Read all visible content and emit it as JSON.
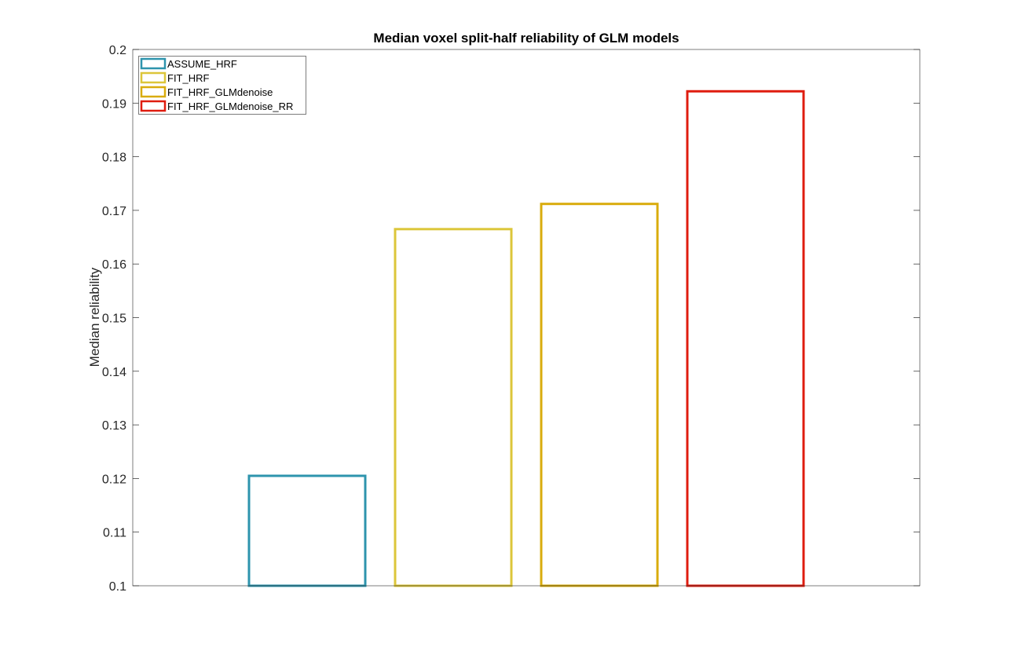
{
  "chart_data": {
    "type": "bar",
    "title": "Median voxel split-half reliability of GLM models",
    "xlabel": "",
    "ylabel": "Median reliability",
    "categories": [
      "ASSUME_HRF",
      "FIT_HRF",
      "FIT_HRF_GLMdenoise",
      "FIT_HRF_GLMdenoise_RR"
    ],
    "values": [
      0.1205,
      0.1665,
      0.1712,
      0.1922
    ],
    "series": [
      {
        "name": "ASSUME_HRF",
        "value": 0.1205,
        "color": "#2e94ad"
      },
      {
        "name": "FIT_HRF",
        "value": 0.1665,
        "color": "#dcc63a"
      },
      {
        "name": "FIT_HRF_GLMdenoise",
        "value": 0.1712,
        "color": "#d9ac0d"
      },
      {
        "name": "FIT_HRF_GLMdenoise_RR",
        "value": 0.1922,
        "color": "#df1c0f"
      }
    ],
    "ylim": [
      0.1,
      0.2
    ],
    "yticks": [
      0.1,
      0.11,
      0.12,
      0.13,
      0.14,
      0.15,
      0.16,
      0.17,
      0.18,
      0.19,
      0.2
    ],
    "ytick_labels": [
      "0.1",
      "0.11",
      "0.12",
      "0.13",
      "0.14",
      "0.15",
      "0.16",
      "0.17",
      "0.18",
      "0.19",
      "0.2"
    ],
    "grid": false,
    "legend": "top-left",
    "bar_fill": "none"
  }
}
